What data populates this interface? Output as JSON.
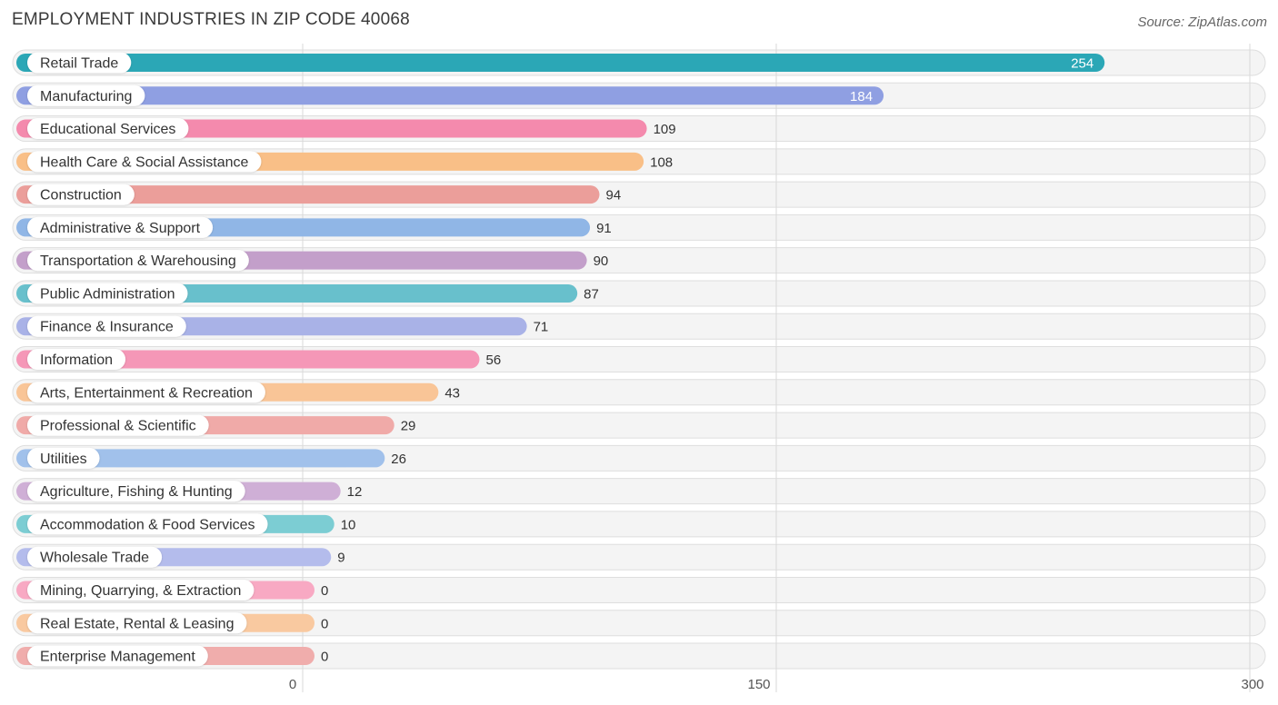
{
  "header": {
    "title": "EMPLOYMENT INDUSTRIES IN ZIP CODE 40068",
    "source": "Source: ZipAtlas.com"
  },
  "chart_data": {
    "type": "bar",
    "orientation": "horizontal",
    "title": "EMPLOYMENT INDUSTRIES IN ZIP CODE 40068",
    "categories": [
      "Retail Trade",
      "Manufacturing",
      "Educational Services",
      "Health Care & Social Assistance",
      "Construction",
      "Administrative & Support",
      "Transportation & Warehousing",
      "Public Administration",
      "Finance & Insurance",
      "Information",
      "Arts, Entertainment & Recreation",
      "Professional & Scientific",
      "Utilities",
      "Agriculture, Fishing & Hunting",
      "Accommodation & Food Services",
      "Wholesale Trade",
      "Mining, Quarrying, & Extraction",
      "Real Estate, Rental & Leasing",
      "Enterprise Management"
    ],
    "values": [
      254,
      184,
      109,
      108,
      94,
      91,
      90,
      87,
      71,
      56,
      43,
      29,
      26,
      12,
      10,
      9,
      0,
      0,
      0
    ],
    "value_labels": [
      "254",
      "184",
      "109",
      "108",
      "94",
      "91",
      "90",
      "87",
      "71",
      "56",
      "43",
      "29",
      "26",
      "12",
      "10",
      "9",
      "0",
      "0",
      "0"
    ],
    "colors": [
      "#2ba7b6",
      "#8f9fe2",
      "#f48aad",
      "#f9bf87",
      "#eb9e9a",
      "#90b6e6",
      "#c39fca",
      "#68c0cc",
      "#a9b2e7",
      "#f597b7",
      "#f9c597",
      "#f0aaa8",
      "#a1c1eb",
      "#cfafd6",
      "#7ccdd3",
      "#b4bcec",
      "#f8a9c3",
      "#f9c9a0",
      "#f0adac"
    ],
    "xlim": [
      0,
      300
    ],
    "xticks": [
      0,
      150,
      300
    ],
    "xtick_labels": [
      "0",
      "150",
      "300"
    ],
    "grid": true
  }
}
